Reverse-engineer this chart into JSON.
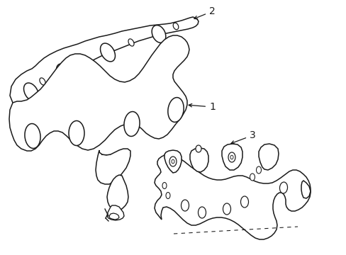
{
  "bg_color": "#ffffff",
  "line_color": "#1a1a1a",
  "line_width": 1.1,
  "label_fontsize": 10
}
